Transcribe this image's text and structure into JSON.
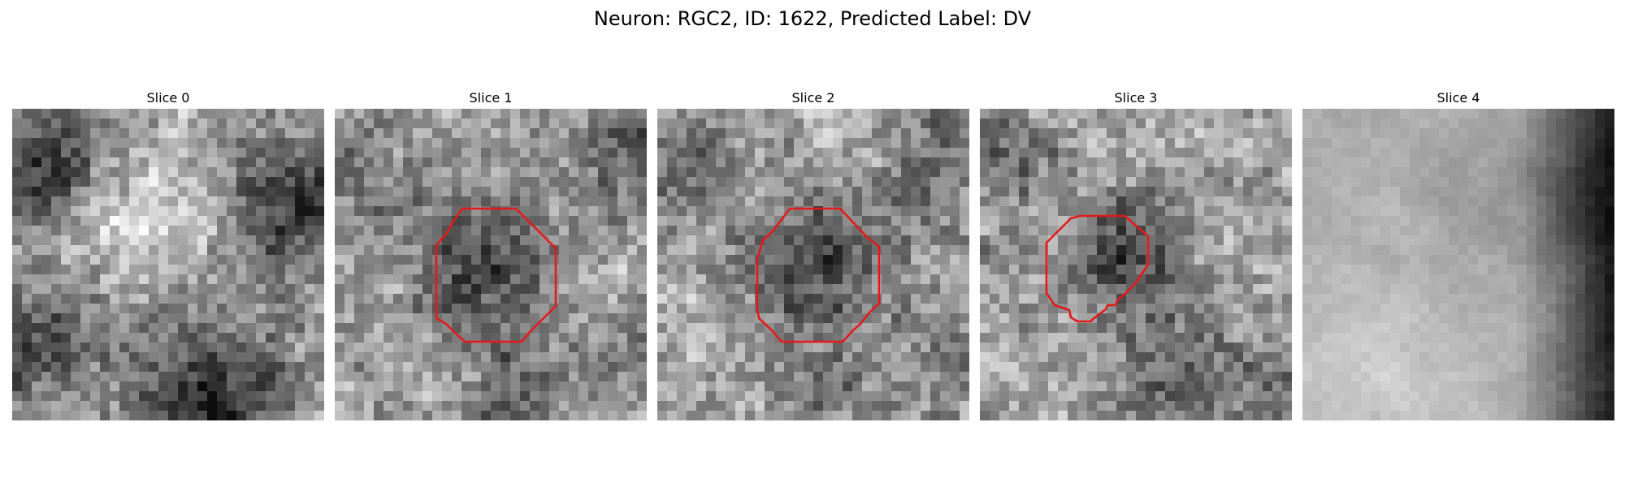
{
  "figure": {
    "title": "Neuron: RGC2, ID: 1622, Predicted Label: DV"
  },
  "roi_outline_color": "#e31a1c",
  "colormap": "grayscale",
  "panels": [
    {
      "title": "Slice 0",
      "pattern": "bright-arms-dark-corners",
      "roi": null
    },
    {
      "title": "Slice 1",
      "pattern": "dark-center",
      "roi": {
        "shape": "octagon"
      }
    },
    {
      "title": "Slice 2",
      "pattern": "dark-center",
      "roi": {
        "shape": "octagon"
      }
    },
    {
      "title": "Slice 3",
      "pattern": "dark-center-small",
      "roi": {
        "shape": "octagon"
      }
    },
    {
      "title": "Slice 4",
      "pattern": "smooth-bright-dark-right",
      "roi": null
    }
  ]
}
